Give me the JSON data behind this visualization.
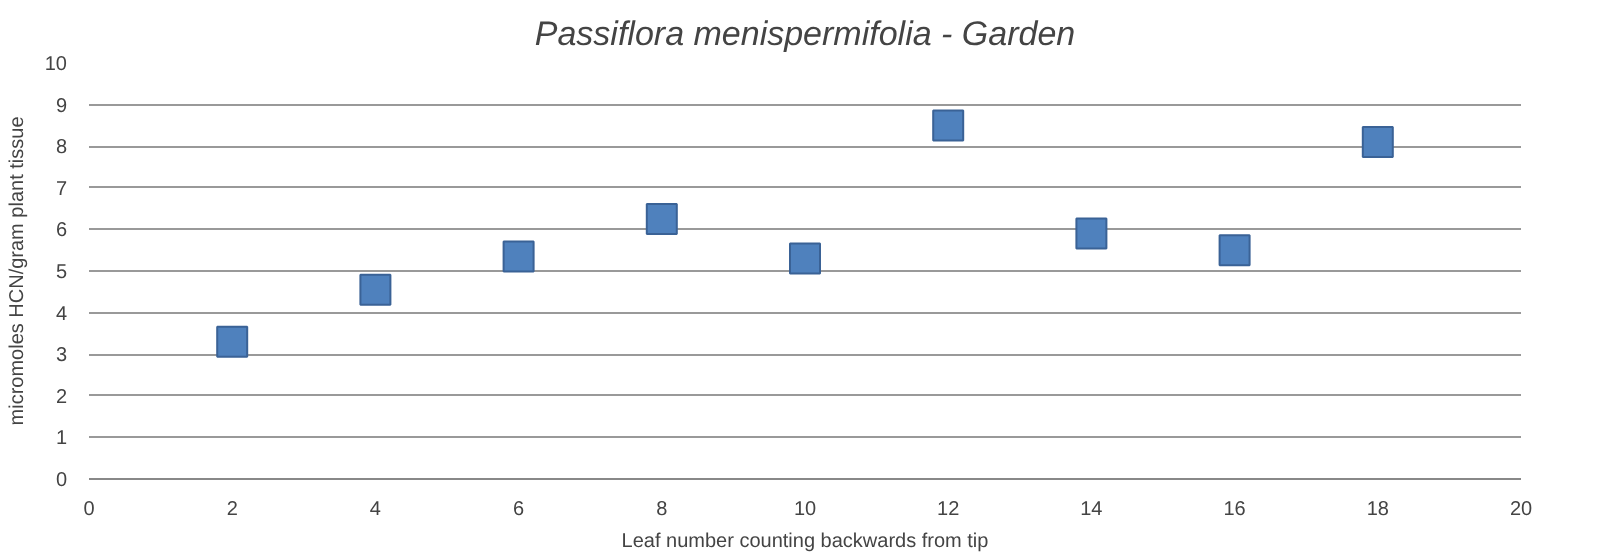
{
  "chart_data": {
    "type": "scatter",
    "title": "Passiflora menispermifolia - Garden",
    "xlabel": "Leaf number counting backwards from tip",
    "ylabel": "micromoles HCN/gram plant tissue",
    "x": [
      2,
      4,
      6,
      8,
      10,
      12,
      14,
      16,
      18
    ],
    "series": [
      {
        "color": "#4f81bd",
        "values": [
          3.3,
          4.55,
          5.35,
          6.25,
          5.3,
          8.5,
          5.9,
          5.5,
          8.1
        ]
      }
    ],
    "xlim": [
      0,
      20
    ],
    "xticks": [
      0,
      2,
      4,
      6,
      8,
      10,
      12,
      14,
      16,
      18,
      20
    ],
    "ylim": [
      0,
      10
    ],
    "yticks": [
      0,
      1,
      2,
      3,
      4,
      5,
      6,
      7,
      8,
      9,
      10
    ],
    "grid": "y",
    "marker": "square"
  }
}
